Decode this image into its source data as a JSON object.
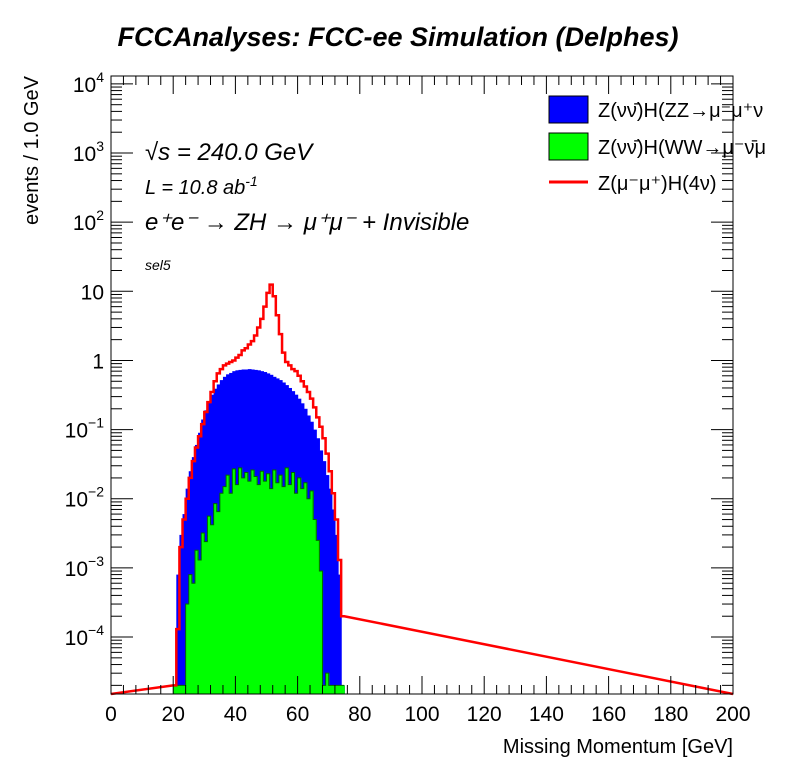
{
  "chart_data": {
    "type": "histogram",
    "title": "FCCAnalyses: FCC-ee Simulation (Delphes)",
    "xlabel": "Missing Momentum [GeV]",
    "ylabel": "events / 1.0 GeV",
    "xlim": [
      0,
      200
    ],
    "ylim": [
      1.5e-05,
      13000
    ],
    "yscale": "log",
    "bin_width": 1.0,
    "x_ticks": [
      "0",
      "20",
      "40",
      "60",
      "80",
      "100",
      "120",
      "140",
      "160",
      "180",
      "200"
    ],
    "y_ticks": [
      {
        "value": 0.0001,
        "base": "10",
        "exp": "−4"
      },
      {
        "value": 0.001,
        "base": "10",
        "exp": "−3"
      },
      {
        "value": 0.01,
        "base": "10",
        "exp": "−2"
      },
      {
        "value": 0.1,
        "base": "10",
        "exp": "−1"
      },
      {
        "value": 1,
        "base": "1",
        "exp": ""
      },
      {
        "value": 10,
        "base": "10",
        "exp": ""
      },
      {
        "value": 100,
        "base": "10",
        "exp": "2"
      },
      {
        "value": 1000,
        "base": "10",
        "exp": "3"
      },
      {
        "value": 10000,
        "base": "10",
        "exp": "4"
      }
    ],
    "annotations": {
      "sqrt_s": "√s = 240.0 GeV",
      "lumi_text": "L = 10.8 ab",
      "lumi_exp": "-1",
      "process": "e⁺e⁻ → ZH → μ⁺μ⁻ + Invisible",
      "selection": "sel5"
    },
    "legend_position": "top-right",
    "series": [
      {
        "name": "Z(νν̄)H(ZZ→μ⁻μ⁺ν",
        "color": "#0000ff",
        "style": "stacked-fill",
        "x_start": 20,
        "values": [
          2e-05,
          0.0008,
          0.003,
          0.006,
          0.014,
          0.025,
          0.04,
          0.06,
          0.09,
          0.14,
          0.19,
          0.25,
          0.32,
          0.39,
          0.45,
          0.52,
          0.58,
          0.63,
          0.66,
          0.7,
          0.72,
          0.73,
          0.74,
          0.74,
          0.75,
          0.74,
          0.73,
          0.72,
          0.7,
          0.68,
          0.65,
          0.62,
          0.58,
          0.55,
          0.52,
          0.48,
          0.44,
          0.4,
          0.36,
          0.32,
          0.28,
          0.24,
          0.2,
          0.16,
          0.13,
          0.1,
          0.075,
          0.05,
          0.035,
          0.022,
          0.014,
          0.007,
          0.003,
          0.0008,
          2e-05
        ]
      },
      {
        "name": "Z(νν̄)H(WW→μ⁻ν̄μ",
        "color": "#00ff00",
        "style": "stacked-fill",
        "x_start": 20,
        "values": [
          2e-05,
          2e-05,
          2e-05,
          2e-05,
          0.0003,
          0.0008,
          0.0006,
          0.0018,
          0.0013,
          0.0032,
          0.0024,
          0.0056,
          0.0042,
          0.0085,
          0.0065,
          0.012,
          0.015,
          0.022,
          0.012,
          0.027,
          0.016,
          0.028,
          0.02,
          0.024,
          0.018,
          0.026,
          0.021,
          0.016,
          0.025,
          0.018,
          0.023,
          0.014,
          0.026,
          0.017,
          0.022,
          0.015,
          0.028,
          0.016,
          0.024,
          0.012,
          0.02,
          0.014,
          0.017,
          0.01,
          0.013,
          0.005,
          0.0025,
          0.0009,
          2e-05,
          3e-05,
          2e-05,
          2e-05,
          2e-05,
          2e-05,
          2e-05
        ]
      },
      {
        "name": "Z(μ⁻μ⁺)H(4ν)",
        "color": "#ff0000",
        "style": "line",
        "x_start": 20,
        "values": [
          2e-05,
          0.00013,
          0.002,
          0.005,
          0.01,
          0.02,
          0.035,
          0.055,
          0.08,
          0.12,
          0.18,
          0.25,
          0.35,
          0.5,
          0.65,
          0.75,
          0.85,
          0.9,
          0.95,
          1.0,
          1.1,
          1.2,
          1.4,
          1.5,
          1.7,
          1.9,
          2.3,
          3.0,
          4.0,
          6.0,
          9.5,
          12.5,
          8.5,
          4.5,
          2.4,
          1.3,
          0.95,
          0.85,
          0.75,
          0.7,
          0.6,
          0.5,
          0.42,
          0.35,
          0.28,
          0.21,
          0.15,
          0.11,
          0.075,
          0.045,
          0.025,
          0.012,
          0.005,
          0.0013,
          0.0002
        ]
      }
    ]
  }
}
